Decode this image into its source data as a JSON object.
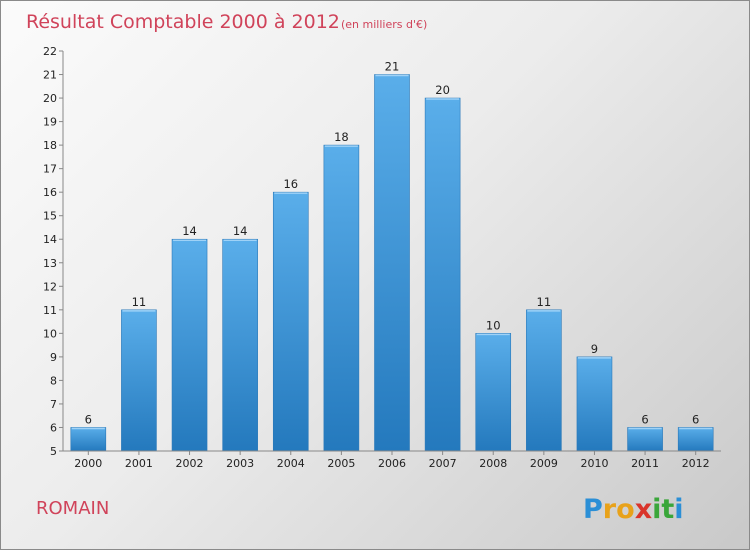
{
  "chart_data": {
    "type": "bar",
    "title": "Résultat Comptable 2000 à 2012",
    "subtitle": "(en milliers d'€)",
    "categories": [
      "2000",
      "2001",
      "2002",
      "2003",
      "2004",
      "2005",
      "2006",
      "2007",
      "2008",
      "2009",
      "2010",
      "2011",
      "2012"
    ],
    "values": [
      6,
      11,
      14,
      14,
      16,
      18,
      21,
      20,
      10,
      11,
      9,
      6,
      6
    ],
    "ylim": [
      5,
      22
    ],
    "yticks": [
      5,
      6,
      7,
      8,
      9,
      10,
      11,
      12,
      13,
      14,
      15,
      16,
      17,
      18,
      19,
      20,
      21,
      22
    ],
    "xlabel": "",
    "ylabel": "",
    "grid": false,
    "bar_color_top": "#5aaeea",
    "bar_color_bottom": "#2479bd"
  },
  "footer": {
    "commune": "ROMAIN",
    "logo_letters": [
      "P",
      "r",
      "o",
      "x",
      "i",
      "t",
      "i"
    ],
    "logo_colors": [
      "#2b8fd6",
      "#e8a21a",
      "#e8a21a",
      "#d9342b",
      "#3aa63a",
      "#3aa63a",
      "#2b8fd6"
    ]
  }
}
